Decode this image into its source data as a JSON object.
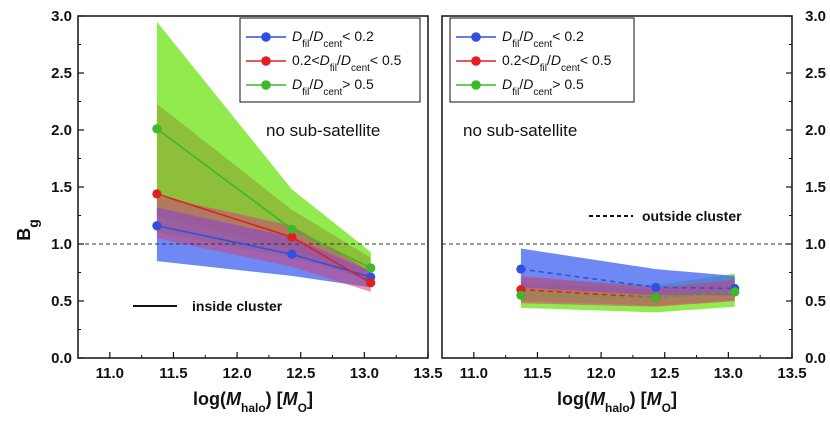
{
  "chart_data": [
    {
      "type": "line",
      "panel": "left",
      "xlabel": "log(M_halo) [M_O]",
      "ylabel": "B_g",
      "xlim": [
        10.75,
        13.5
      ],
      "ylim": [
        0.0,
        3.0
      ],
      "xticks": [
        "11.0",
        "11.5",
        "12.0",
        "12.5",
        "13.0",
        "13.5"
      ],
      "yticks": [
        "0.0",
        "0.5",
        "1.0",
        "1.5",
        "2.0",
        "2.5",
        "3.0"
      ],
      "y_tick_side": "left",
      "reference_line": 1.0,
      "note": "no sub-satellite",
      "line_key": "inside cluster",
      "line_style": "solid",
      "x": [
        11.37,
        12.43,
        13.05
      ],
      "series": [
        {
          "name": "D_fil/D_cent < 0.2",
          "color": "#3050e0",
          "band_color": "#4a6cf0",
          "values": [
            1.16,
            0.91,
            0.71
          ],
          "lower": [
            0.85,
            0.72,
            0.62
          ],
          "upper": [
            1.32,
            1.06,
            0.76
          ]
        },
        {
          "name": "0.2 < D_fil/D_cent < 0.5",
          "color": "#e02020",
          "band_color": "#d0407a",
          "values": [
            1.44,
            1.06,
            0.66
          ],
          "lower": [
            1.05,
            0.8,
            0.58
          ],
          "upper": [
            1.42,
            1.16,
            0.76
          ]
        },
        {
          "name": "D_fil/D_cent > 0.5",
          "color": "#3cb82a",
          "band_color": "#7ee830",
          "values": [
            2.01,
            1.13,
            0.79
          ],
          "lower": [
            1.1,
            0.88,
            0.68
          ],
          "upper": [
            2.95,
            1.48,
            0.93
          ]
        }
      ],
      "mid_band": {
        "color": "#8a9a2a",
        "lower": [
          1.25,
          0.95,
          0.68
        ],
        "upper": [
          2.23,
          1.3,
          0.88
        ]
      },
      "legend": [
        "D_fil/D_cent < 0.2",
        "0.2 < D_fil/D_cent < 0.5",
        "D_fil/D_cent > 0.5"
      ]
    },
    {
      "type": "line",
      "panel": "right",
      "xlabel": "log(M_halo) [M_O]",
      "ylabel": "",
      "xlim": [
        10.75,
        13.5
      ],
      "ylim": [
        0.0,
        3.0
      ],
      "xticks": [
        "11.0",
        "11.5",
        "12.0",
        "12.5",
        "13.0",
        "13.5"
      ],
      "yticks": [
        "0.0",
        "0.5",
        "1.0",
        "1.5",
        "2.0",
        "2.5",
        "3.0"
      ],
      "y_tick_side": "right",
      "reference_line": 1.0,
      "note": "no sub-satellite",
      "line_key": "outside cluster",
      "line_style": "dashed",
      "x": [
        11.37,
        12.43,
        13.05
      ],
      "series": [
        {
          "name": "D_fil/D_cent < 0.2",
          "color": "#3050e0",
          "band_color": "#4a6cf0",
          "values": [
            0.78,
            0.62,
            0.61
          ],
          "lower": [
            0.62,
            0.55,
            0.55
          ],
          "upper": [
            0.96,
            0.78,
            0.72
          ]
        },
        {
          "name": "0.2 < D_fil/D_cent < 0.5",
          "color": "#e02020",
          "band_color": "#d0407a",
          "values": [
            0.6,
            0.53,
            0.58
          ],
          "lower": [
            0.48,
            0.45,
            0.5
          ],
          "upper": [
            0.72,
            0.62,
            0.68
          ]
        },
        {
          "name": "D_fil/D_cent > 0.5",
          "color": "#3cb82a",
          "band_color": "#7ee830",
          "values": [
            0.55,
            0.53,
            0.58
          ],
          "lower": [
            0.44,
            0.4,
            0.45
          ],
          "upper": [
            0.7,
            0.64,
            0.74
          ]
        }
      ],
      "mid_band": {
        "color": "#8a9a2a",
        "lower": [
          0.5,
          0.46,
          0.5
        ],
        "upper": [
          0.66,
          0.6,
          0.7
        ]
      },
      "legend": [
        "D_fil/D_cent < 0.2",
        "0.2 < D_fil/D_cent < 0.5",
        "D_fil/D_cent > 0.5"
      ]
    }
  ]
}
